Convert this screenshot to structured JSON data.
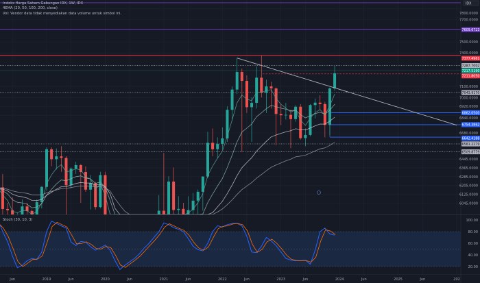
{
  "header": {
    "symbol_line": "Indeks Harga Saham Gabungan IDX, 1W, IDX",
    "ema_line": "4EMA (20, 50, 100, 200, close)",
    "volume_line": "Vol: Vendor data tidak menyediakan data volume untuk simbol ini."
  },
  "colors": {
    "background": "#161a25",
    "up": "#26a69a",
    "down": "#ef5350",
    "purple": "#673ab7",
    "blue": "#2962ff",
    "stoch_k": "#2962ff",
    "stoch_d": "#ff6d00",
    "band": "#1c2a45"
  },
  "chart_data": [
    {
      "type": "candlestick",
      "symbol_label": "IDX",
      "price_ticks": [
        7800,
        7700,
        7500,
        7400,
        7100,
        7000,
        6920,
        6840,
        6680,
        6445,
        6365,
        6285,
        6205,
        6125,
        6045
      ],
      "time_ticks": [
        {
          "label": "Jun",
          "date": "2018-06"
        },
        {
          "label": "2019",
          "date": "2019-01"
        },
        {
          "label": "Jun",
          "date": "2019-06"
        },
        {
          "label": "2020",
          "date": "2020-01"
        },
        {
          "label": "Jun",
          "date": "2020-06"
        },
        {
          "label": "2021",
          "date": "2021-01"
        },
        {
          "label": "Jun",
          "date": "2021-06"
        },
        {
          "label": "2022",
          "date": "2022-01"
        },
        {
          "label": "Jun",
          "date": "2022-06"
        },
        {
          "label": "2023",
          "date": "2023-01"
        },
        {
          "label": "Jun",
          "date": "2023-06"
        },
        {
          "label": "2024",
          "date": "2024-01"
        },
        {
          "label": "Jun",
          "date": "2024-06"
        },
        {
          "label": "2025",
          "date": "2025-01"
        },
        {
          "label": "Jun",
          "date": "2025-06"
        },
        {
          "label": "202",
          "date": "2026-01"
        }
      ],
      "candles_ohlc": [
        [
          "2018-03",
          6598,
          6650,
          6150,
          6190
        ],
        [
          "2018-04",
          6190,
          6310,
          5900,
          5995
        ],
        [
          "2018-05",
          5995,
          6050,
          5700,
          5984
        ],
        [
          "2018-06",
          5984,
          6100,
          5630,
          5799
        ],
        [
          "2018-07",
          5799,
          5960,
          5700,
          5936
        ],
        [
          "2018-08",
          5936,
          6080,
          5810,
          6018
        ],
        [
          "2018-09",
          6018,
          6050,
          5690,
          5977
        ],
        [
          "2018-10",
          5977,
          5990,
          5620,
          5832
        ],
        [
          "2018-11",
          5832,
          6080,
          5750,
          6056
        ],
        [
          "2018-12",
          6056,
          6200,
          6000,
          6194
        ],
        [
          "2019-01",
          6194,
          6550,
          6160,
          6533
        ],
        [
          "2019-02",
          6533,
          6550,
          6380,
          6443
        ],
        [
          "2019-03",
          6443,
          6540,
          6350,
          6469
        ],
        [
          "2019-04",
          6469,
          6560,
          6330,
          6455
        ],
        [
          "2019-05",
          6455,
          6470,
          5830,
          6209
        ],
        [
          "2019-06",
          6209,
          6370,
          6180,
          6359
        ],
        [
          "2019-07",
          6359,
          6420,
          6310,
          6390
        ],
        [
          "2019-08",
          6390,
          6400,
          6050,
          6328
        ],
        [
          "2019-09",
          6328,
          6380,
          6150,
          6169
        ],
        [
          "2019-10",
          6169,
          6300,
          5990,
          6228
        ],
        [
          "2019-11",
          6228,
          6240,
          5990,
          6012
        ],
        [
          "2019-12",
          6012,
          6330,
          6000,
          6300
        ],
        [
          "2020-01",
          6300,
          6330,
          5930,
          5940
        ],
        [
          "2020-02",
          5940,
          5960,
          5400,
          5453
        ],
        [
          "2020-03",
          5453,
          5700,
          3910,
          4539
        ],
        [
          "2020-04",
          4539,
          4740,
          4440,
          4716
        ],
        [
          "2020-05",
          4716,
          4790,
          4500,
          4754
        ],
        [
          "2020-06",
          4754,
          5070,
          4700,
          4905
        ],
        [
          "2020-07",
          4905,
          5150,
          4880,
          5150
        ],
        [
          "2020-08",
          5150,
          5380,
          5140,
          5238
        ],
        [
          "2020-09",
          5238,
          5350,
          4830,
          4870
        ],
        [
          "2020-10",
          4870,
          5180,
          4830,
          5128
        ],
        [
          "2020-11",
          5128,
          5660,
          5100,
          5612
        ],
        [
          "2020-12",
          5612,
          6120,
          5610,
          5979
        ],
        [
          "2021-01",
          5979,
          6500,
          5860,
          5862
        ],
        [
          "2021-02",
          5862,
          6290,
          5860,
          6242
        ],
        [
          "2021-03",
          6242,
          6370,
          5950,
          5986
        ],
        [
          "2021-04",
          5986,
          6110,
          5880,
          5996
        ],
        [
          "2021-05",
          5996,
          6050,
          5750,
          5947
        ],
        [
          "2021-06",
          5947,
          6110,
          5880,
          5985
        ],
        [
          "2021-07",
          5985,
          6140,
          5880,
          6070
        ],
        [
          "2021-08",
          6070,
          6170,
          5930,
          6150
        ],
        [
          "2021-09",
          6150,
          6290,
          5980,
          6287
        ],
        [
          "2021-10",
          6287,
          6690,
          6270,
          6591
        ],
        [
          "2021-11",
          6591,
          6720,
          6470,
          6533
        ],
        [
          "2021-12",
          6533,
          6640,
          6450,
          6581
        ],
        [
          "2022-01",
          6581,
          6730,
          6530,
          6631
        ],
        [
          "2022-02",
          6631,
          6920,
          6600,
          6888
        ],
        [
          "2022-03",
          6888,
          7100,
          6790,
          7071
        ],
        [
          "2022-04",
          7071,
          7355,
          7030,
          7229
        ],
        [
          "2022-05",
          7229,
          7260,
          6510,
          7149
        ],
        [
          "2022-06",
          7149,
          7200,
          6860,
          6912
        ],
        [
          "2022-07",
          6912,
          7000,
          6600,
          6951
        ],
        [
          "2022-08",
          6951,
          7280,
          6900,
          7178
        ],
        [
          "2022-09",
          7178,
          7377,
          7000,
          7041
        ],
        [
          "2022-10",
          7041,
          7160,
          6860,
          7099
        ],
        [
          "2022-11",
          7099,
          7140,
          6900,
          7081
        ],
        [
          "2022-12",
          7081,
          7090,
          6570,
          6851
        ],
        [
          "2023-01",
          6851,
          6940,
          6750,
          6839
        ],
        [
          "2023-02",
          6839,
          6950,
          6800,
          6843
        ],
        [
          "2023-03",
          6843,
          6890,
          6542,
          6805
        ],
        [
          "2023-04",
          6805,
          6930,
          6780,
          6916
        ],
        [
          "2023-05",
          6916,
          6940,
          6620,
          6633
        ],
        [
          "2023-06",
          6633,
          6720,
          6560,
          6662
        ],
        [
          "2023-07",
          6662,
          6940,
          6650,
          6931
        ],
        [
          "2023-08",
          6931,
          6990,
          6810,
          6953
        ],
        [
          "2023-09",
          6953,
          7020,
          6890,
          6940
        ],
        [
          "2023-10",
          6940,
          6960,
          6640,
          6752
        ],
        [
          "2023-11",
          6752,
          7090,
          6660,
          7081
        ],
        [
          "2023-12",
          7081,
          7290,
          7060,
          7217.519
        ]
      ],
      "ema_periods": [
        20,
        50,
        100,
        200
      ],
      "levels": [
        {
          "price": 7609.6723,
          "label": "7609.6723",
          "style": "solid",
          "color": "#673ab7"
        },
        {
          "price": 7377.4961,
          "label": "7377.4961",
          "style": "solid",
          "color": "#f23645"
        },
        {
          "price": 7287.7002,
          "label": "7287.7002",
          "style": "dotted",
          "color": "#9598a1"
        },
        {
          "price": 7217.519,
          "label": "7217.5190",
          "style": "current",
          "color": "#089981"
        },
        {
          "price": 7211.805,
          "label": "7211.8050",
          "style": "dashed",
          "color": "#f23645"
        },
        {
          "price": 7043.917,
          "label": "7043.9170",
          "style": "dotted",
          "color": "#9598a1"
        },
        {
          "price": 6862.05,
          "label": "6862.0500",
          "style": "zone",
          "color": "#2962ff"
        },
        {
          "price": 6754.3862,
          "label": "6754.3862",
          "style": "zone",
          "color": "#2962ff"
        },
        {
          "price": 6642.4188,
          "label": "6642.4188",
          "style": "zone",
          "color": "#2962ff"
        },
        {
          "price": 6581.2279,
          "label": "6581.2279",
          "style": "dotted",
          "color": "#9598a1"
        },
        {
          "price": 6509.8779,
          "label": "6509.8779",
          "style": "dotted",
          "color": "#9598a1"
        }
      ],
      "trendline": {
        "from": [
          "2022-04",
          7355
        ],
        "to": [
          "2026-01",
          6750
        ]
      }
    },
    {
      "type": "line",
      "title": "Stoch (30, 10, 3)",
      "y_ticks": [
        100,
        80,
        60,
        40,
        20
      ],
      "band": [
        20,
        80
      ],
      "dates_from": "2018-03",
      "k": [
        92,
        80,
        63,
        38,
        18,
        22,
        30,
        34,
        32,
        45,
        80,
        98,
        94,
        90,
        86,
        62,
        56,
        63,
        62,
        54,
        48,
        52,
        57,
        48,
        30,
        15,
        22,
        28,
        34,
        42,
        52,
        60,
        70,
        80,
        95,
        92,
        87,
        84,
        80,
        68,
        55,
        49,
        47,
        60,
        80,
        90,
        88,
        92,
        94,
        94,
        90,
        72,
        45,
        44,
        55,
        70,
        64,
        56,
        45,
        34,
        31,
        30,
        30,
        31,
        24,
        48,
        80,
        86,
        76,
        74
      ]
    }
  ]
}
